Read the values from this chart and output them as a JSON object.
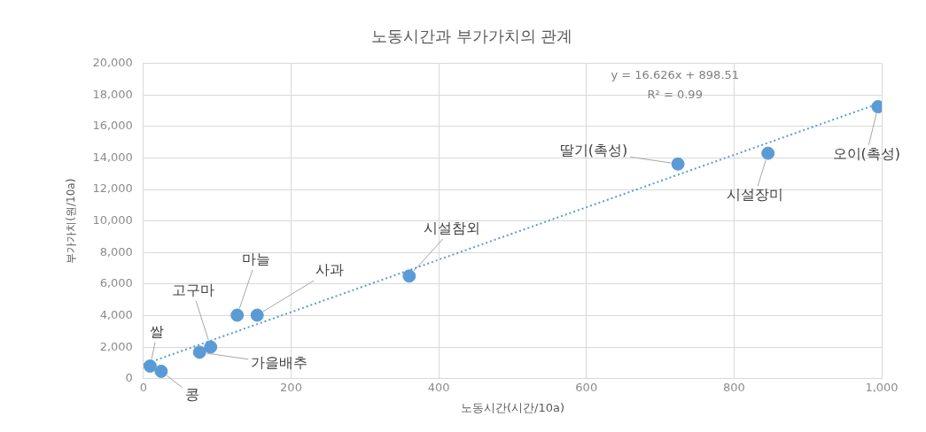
{
  "chart_data": {
    "type": "scatter",
    "title": "노동시간과 부가가치의 관계",
    "xlabel": "노동시간(시간/10a)",
    "ylabel": "부가가치(원/10a)",
    "xlim": [
      0,
      1000
    ],
    "xticks": [
      0,
      200,
      400,
      600,
      800,
      {
        "value": 1000,
        "label": "1,000"
      }
    ],
    "ylim": [
      0,
      20000
    ],
    "yticks": [
      0,
      {
        "value": 2000,
        "label": "2,000"
      },
      {
        "value": 4000,
        "label": "4,000"
      },
      {
        "value": 6000,
        "label": "6,000"
      },
      {
        "value": 8000,
        "label": "8,000"
      },
      {
        "value": 10000,
        "label": "10,000"
      },
      {
        "value": 12000,
        "label": "12,000"
      },
      {
        "value": 14000,
        "label": "14,000"
      },
      {
        "value": 16000,
        "label": "16,000"
      },
      {
        "value": 18000,
        "label": "18,000"
      },
      {
        "value": 20000,
        "label": "20,000"
      }
    ],
    "grid": true,
    "legend": false,
    "marker": "circle",
    "series": [
      {
        "color": "#5b9bd5",
        "x": [
          9,
          24,
          76,
          91,
          127,
          154,
          360,
          724,
          846,
          995
        ],
        "values": [
          800,
          470,
          1680,
          2010,
          4030,
          4030,
          6510,
          13620,
          14300,
          17250
        ]
      },
      {
        "type": "line",
        "color": "#5b9bd5",
        "line_style": "dotted",
        "marker": "none",
        "x": [
          0,
          1000
        ],
        "values": [
          900,
          17520
        ]
      }
    ],
    "annotations": [
      "y = 16.626x + 898.51",
      "R² = 0.99",
      {
        "text": "쌀",
        "x": 9,
        "y": 800
      },
      {
        "text": "콩",
        "x": 24,
        "y": 470
      },
      {
        "text": "가을배추",
        "x": 76,
        "y": 1680
      },
      {
        "text": "고구마",
        "x": 91,
        "y": 2010
      },
      {
        "text": "마늘",
        "x": 127,
        "y": 4030
      },
      {
        "text": "사과",
        "x": 154,
        "y": 4030
      },
      {
        "text": "시설참외",
        "x": 360,
        "y": 6510
      },
      {
        "text": "딸기(촉성)",
        "x": 724,
        "y": 13620
      },
      {
        "text": "시설장미",
        "x": 846,
        "y": 14300
      },
      {
        "text": "오이(촉성)",
        "x": 995,
        "y": 17250
      }
    ]
  }
}
